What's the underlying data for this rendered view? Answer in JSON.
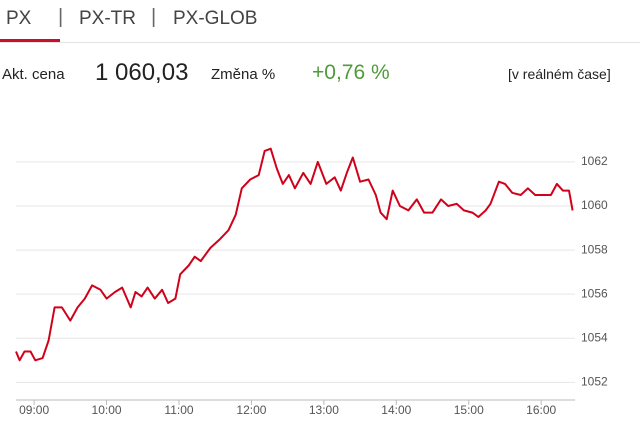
{
  "tabs": [
    "PX",
    "PX-TR",
    "PX-GLOB"
  ],
  "quote": {
    "price_label": "Akt. cena",
    "price": "1 060,03",
    "change_label": "Změna %",
    "change": "+0,76 %",
    "realtime": "[v reálném čase]"
  },
  "chart_data": {
    "type": "line",
    "x": [
      "08:45",
      "08:48",
      "08:52",
      "08:57",
      "09:01",
      "09:07",
      "09:12",
      "09:17",
      "09:23",
      "09:30",
      "09:36",
      "09:42",
      "09:48",
      "09:55",
      "10:00",
      "10:07",
      "10:13",
      "10:20",
      "10:24",
      "10:29",
      "10:34",
      "10:40",
      "10:46",
      "10:51",
      "10:57",
      "11:01",
      "11:08",
      "11:13",
      "11:18",
      "11:26",
      "11:34",
      "11:41",
      "11:47",
      "11:52",
      "11:59",
      "12:06",
      "12:11",
      "12:16",
      "12:21",
      "12:26",
      "12:31",
      "12:36",
      "12:43",
      "12:49",
      "12:55",
      "13:02",
      "13:09",
      "13:14",
      "13:19",
      "13:24",
      "13:30",
      "13:37",
      "13:43",
      "13:47",
      "13:52",
      "13:57",
      "14:03",
      "14:10",
      "14:17",
      "14:23",
      "14:30",
      "14:37",
      "14:43",
      "14:50",
      "14:56",
      "15:03",
      "15:08",
      "15:14",
      "15:18",
      "15:25",
      "15:30",
      "15:36",
      "15:43",
      "15:49",
      "15:55",
      "16:01",
      "16:08",
      "16:13",
      "16:18",
      "16:23",
      "16:26"
    ],
    "values": [
      1053.4,
      1053.0,
      1053.4,
      1053.4,
      1053.0,
      1053.1,
      1053.9,
      1055.4,
      1055.4,
      1054.8,
      1055.4,
      1055.8,
      1056.4,
      1056.2,
      1055.8,
      1056.1,
      1056.3,
      1055.4,
      1056.1,
      1055.9,
      1056.3,
      1055.8,
      1056.2,
      1055.6,
      1055.8,
      1056.9,
      1057.3,
      1057.7,
      1057.5,
      1058.1,
      1058.5,
      1058.9,
      1059.6,
      1060.8,
      1061.2,
      1061.4,
      1062.5,
      1062.6,
      1061.7,
      1061.0,
      1061.4,
      1060.8,
      1061.5,
      1061.0,
      1062.0,
      1061.0,
      1061.3,
      1060.7,
      1061.5,
      1062.2,
      1061.1,
      1061.2,
      1060.5,
      1059.7,
      1059.4,
      1060.7,
      1060.0,
      1059.8,
      1060.3,
      1059.7,
      1059.7,
      1060.3,
      1060.0,
      1060.1,
      1059.8,
      1059.7,
      1059.5,
      1059.8,
      1060.1,
      1061.1,
      1061.0,
      1060.6,
      1060.5,
      1060.8,
      1060.5,
      1060.5,
      1060.5,
      1061.0,
      1060.7,
      1060.7,
      1059.8
    ],
    "color": "#d0021b",
    "xlim": [
      "08:45",
      "16:28"
    ],
    "xticks": [
      "09:00",
      "10:00",
      "11:00",
      "12:00",
      "13:00",
      "14:00",
      "15:00",
      "16:00"
    ],
    "ylim": [
      1051.2,
      1063.9
    ],
    "yticks": [
      1052,
      1054,
      1056,
      1058,
      1060,
      1062
    ],
    "grid": true
  }
}
